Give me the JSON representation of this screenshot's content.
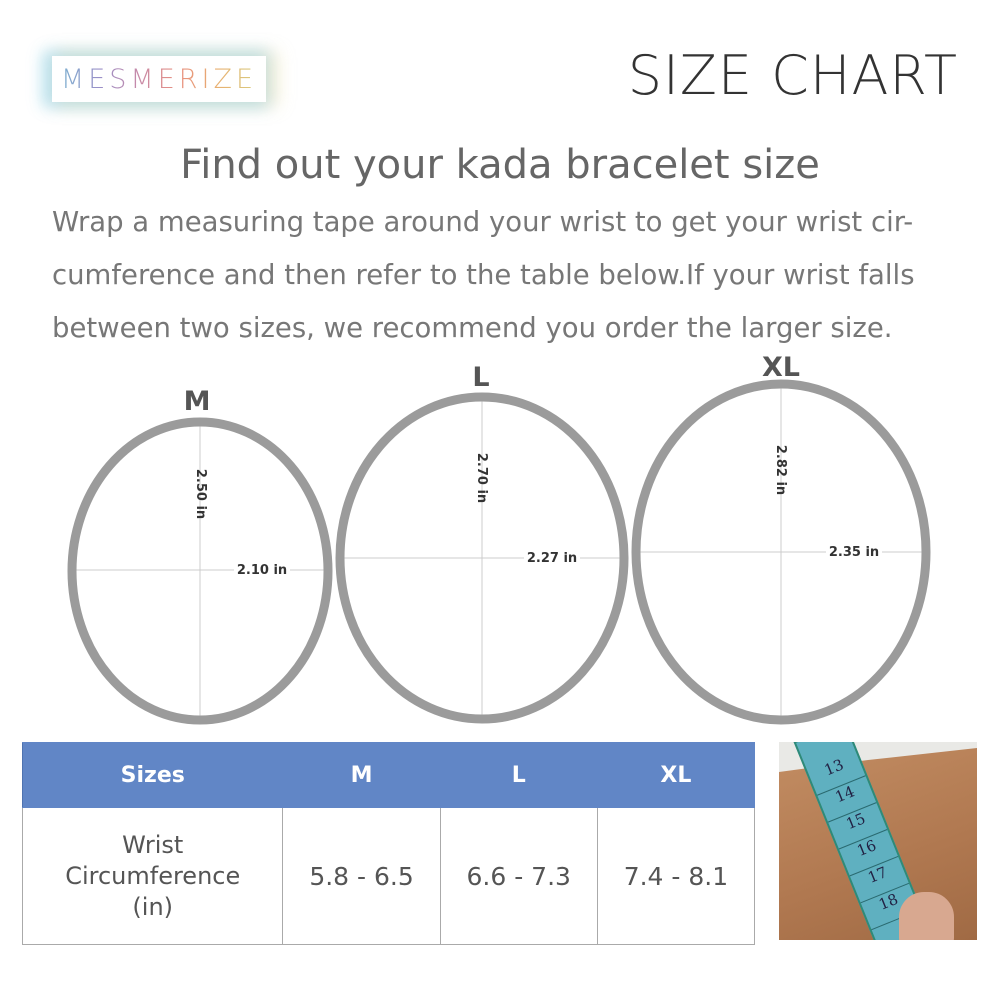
{
  "brand": {
    "logo_text": "MESMERIZE"
  },
  "header": {
    "title": "SIZE CHART"
  },
  "heading": "Find out your kada bracelet size",
  "instructions": "Wrap a measuring tape around your wrist to get your wrist cir-cumference and then refer to the table below.If your wrist falls between two sizes, we recommend you order the larger size.",
  "bracelets": [
    {
      "size": "M",
      "height": "2.50 in",
      "width": "2.10 in"
    },
    {
      "size": "L",
      "height": "2.70 in",
      "width": "2.27 in"
    },
    {
      "size": "XL",
      "height": "2.82 in",
      "width": "2.35 in"
    }
  ],
  "colors": {
    "header_blue": "#6186c6",
    "ring_gray": "#9b9b9b"
  },
  "table": {
    "headers": [
      "Sizes",
      "M",
      "L",
      "XL"
    ],
    "row_label": [
      "Wrist",
      "Circumference",
      "(in)"
    ],
    "values": [
      "5.8 - 6.5",
      "6.6 - 7.3",
      "7.4 - 8.1"
    ]
  },
  "photo": {
    "tape_marks": [
      "13",
      "14",
      "15",
      "16",
      "17",
      "18"
    ]
  }
}
